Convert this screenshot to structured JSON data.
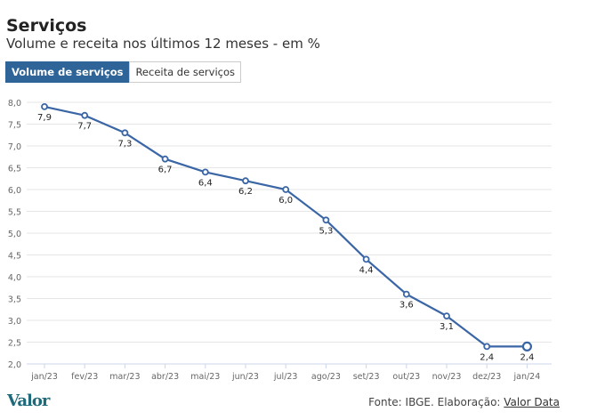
{
  "header": {
    "title": "Serviços",
    "subtitle": "Volume e receita nos últimos 12 meses - em %"
  },
  "tabs": [
    {
      "label": "Volume de serviços",
      "active": true
    },
    {
      "label": "Receita de serviços",
      "active": false
    }
  ],
  "footer": {
    "source_prefix": "Fonte: IBGE. Elaboração: ",
    "source_link": "Valor Data",
    "logo": "Valor"
  },
  "colors": {
    "line": "#3a66a6",
    "tab_active": "#2e6497"
  },
  "chart_data": {
    "type": "line",
    "categories": [
      "jan/23",
      "fev/23",
      "mar/23",
      "abr/23",
      "mai/23",
      "jun/23",
      "jul/23",
      "ago/23",
      "set/23",
      "out/23",
      "nov/23",
      "dez/23",
      "jan/24"
    ],
    "series": [
      {
        "name": "Volume de serviços",
        "values": [
          7.9,
          7.7,
          7.3,
          6.7,
          6.4,
          6.2,
          6.0,
          5.3,
          4.4,
          3.6,
          3.1,
          2.4,
          2.4
        ]
      }
    ],
    "value_labels": [
      "7,9",
      "7,7",
      "7,3",
      "6,7",
      "6,4",
      "6,2",
      "6,0",
      "5,3",
      "4,4",
      "3,6",
      "3,1",
      "2,4",
      "2,4"
    ],
    "yticks": [
      "2,0",
      "2,5",
      "3,0",
      "3,5",
      "4,0",
      "4,5",
      "5,0",
      "5,5",
      "6,0",
      "6,5",
      "7,0",
      "7,5",
      "8,0"
    ],
    "ylim": [
      2,
      8
    ],
    "grid": true,
    "legend": "none",
    "highlighted_index": 12
  }
}
